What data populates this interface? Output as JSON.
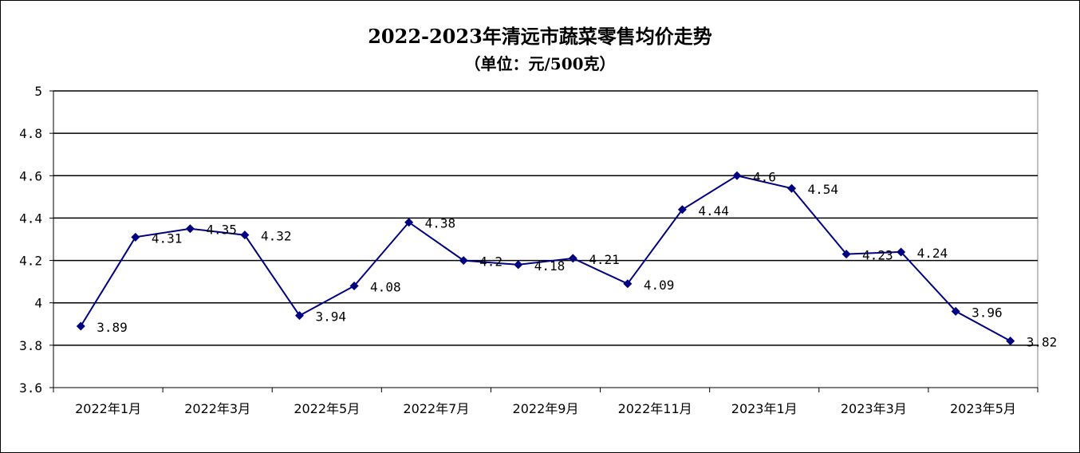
{
  "chart_data": {
    "type": "line",
    "title": "2022-2023年清远市蔬菜零售均价走势",
    "subtitle": "（单位：元/500克）",
    "xlabel": "",
    "ylabel": "",
    "ylim": [
      3.6,
      5
    ],
    "yticks": [
      "3.6",
      "3.8",
      "4",
      "4.2",
      "4.4",
      "4.6",
      "4.8",
      "5"
    ],
    "grid": true,
    "legend": "none",
    "line_color": "#000080",
    "x_tick_labels": [
      "2022年1月",
      "2022年3月",
      "2022年5月",
      "2022年7月",
      "2022年9月",
      "2022年11月",
      "2023年1月",
      "2023年3月",
      "2023年5月"
    ],
    "categories": [
      "2022年1月",
      "2022年2月",
      "2022年3月",
      "2022年4月",
      "2022年5月",
      "2022年6月",
      "2022年7月",
      "2022年8月",
      "2022年9月",
      "2022年10月",
      "2022年11月",
      "2022年12月",
      "2023年1月",
      "2023年2月",
      "2023年3月",
      "2023年4月",
      "2023年5月",
      "2023年6月"
    ],
    "values": [
      3.89,
      4.31,
      4.35,
      4.32,
      3.94,
      4.08,
      4.38,
      4.2,
      4.18,
      4.21,
      4.09,
      4.44,
      4.6,
      4.54,
      4.23,
      4.24,
      3.96,
      3.82
    ],
    "data_labels": [
      "3.89",
      "4.31",
      "4.35",
      "4.32",
      "3.94",
      "4.08",
      "4.38",
      "4.2",
      "4.18",
      "4.21",
      "4.09",
      "4.44",
      "4.6",
      "4.54",
      "4.23",
      "4.24",
      "3.96",
      "3.82"
    ]
  }
}
